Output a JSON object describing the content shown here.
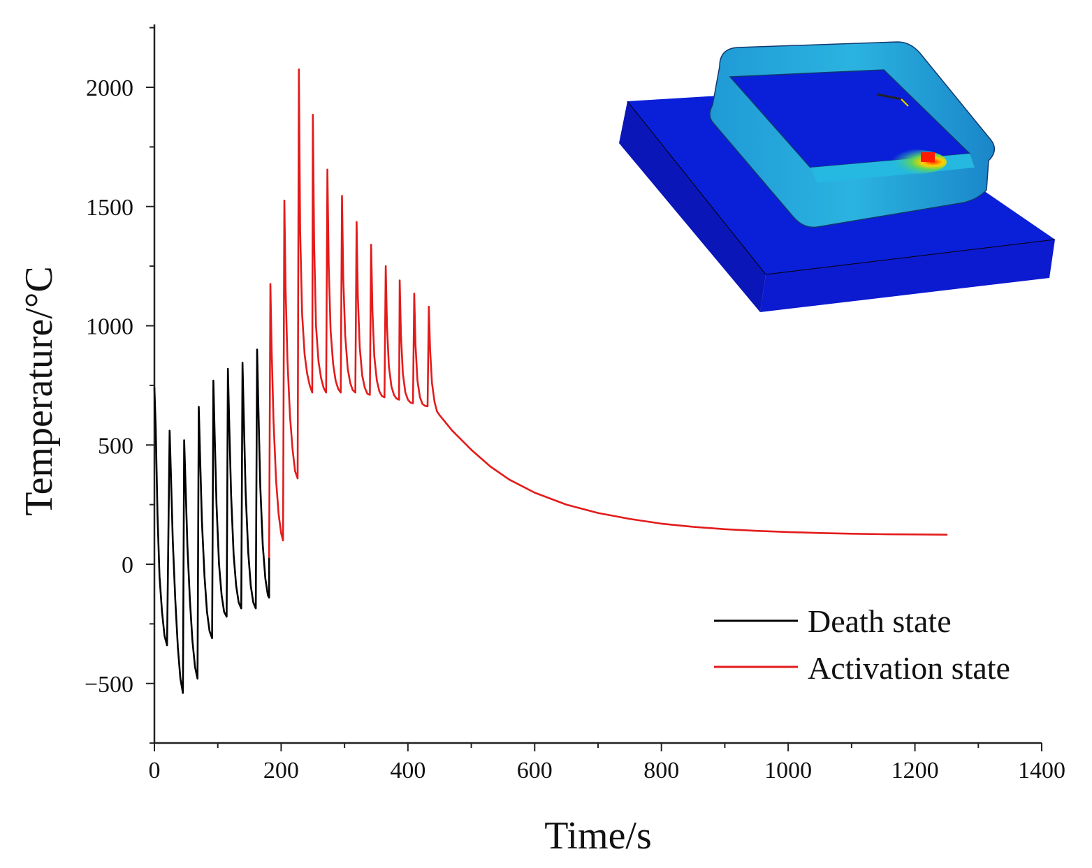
{
  "chart_data": {
    "type": "line",
    "title": "",
    "xlabel": "Time/s",
    "ylabel": "Temperature/°C",
    "xlim": [
      0,
      1400
    ],
    "ylim": [
      -750,
      2250
    ],
    "xticks": [
      0,
      200,
      400,
      600,
      800,
      1000,
      1200,
      1400
    ],
    "xtick_labels": [
      "0",
      "200",
      "400",
      "600",
      "800",
      "1000",
      "1200",
      "1400"
    ],
    "yticks": [
      -500,
      0,
      500,
      1000,
      1500,
      2000
    ],
    "ytick_labels": [
      "−500",
      "0",
      "500",
      "1000",
      "1500",
      "2000"
    ],
    "grid": false,
    "legend_position": "bottom-right",
    "inset": "3D finite element temperature contour of deposited rectangular frame on substrate",
    "series": [
      {
        "name": "Death state",
        "color": "#000000",
        "points": [
          [
            0,
            740
          ],
          [
            2,
            580
          ],
          [
            5,
            200
          ],
          [
            8,
            -50
          ],
          [
            12,
            -200
          ],
          [
            16,
            -300
          ],
          [
            20,
            -340
          ],
          [
            24,
            560
          ],
          [
            26,
            380
          ],
          [
            29,
            100
          ],
          [
            33,
            -150
          ],
          [
            37,
            -350
          ],
          [
            41,
            -480
          ],
          [
            45,
            -540
          ],
          [
            47,
            520
          ],
          [
            49,
            350
          ],
          [
            52,
            80
          ],
          [
            56,
            -150
          ],
          [
            60,
            -320
          ],
          [
            64,
            -430
          ],
          [
            68,
            -480
          ],
          [
            70,
            660
          ],
          [
            72,
            460
          ],
          [
            75,
            180
          ],
          [
            79,
            -50
          ],
          [
            83,
            -200
          ],
          [
            87,
            -280
          ],
          [
            91,
            -310
          ],
          [
            93,
            770
          ],
          [
            95,
            550
          ],
          [
            98,
            250
          ],
          [
            102,
            0
          ],
          [
            106,
            -130
          ],
          [
            110,
            -200
          ],
          [
            114,
            -220
          ],
          [
            116,
            820
          ],
          [
            118,
            600
          ],
          [
            121,
            290
          ],
          [
            125,
            40
          ],
          [
            129,
            -90
          ],
          [
            133,
            -160
          ],
          [
            137,
            -185
          ],
          [
            139,
            845
          ],
          [
            141,
            620
          ],
          [
            144,
            300
          ],
          [
            148,
            50
          ],
          [
            152,
            -90
          ],
          [
            156,
            -160
          ],
          [
            160,
            -185
          ],
          [
            162,
            900
          ],
          [
            164,
            660
          ],
          [
            167,
            330
          ],
          [
            171,
            80
          ],
          [
            175,
            -60
          ],
          [
            179,
            -130
          ],
          [
            181,
            -140
          ],
          [
            181,
            30
          ]
        ]
      },
      {
        "name": "Activation state",
        "color": "#e31b1b",
        "points": [
          [
            181,
            30
          ],
          [
            183,
            1175
          ],
          [
            185,
            900
          ],
          [
            188,
            600
          ],
          [
            192,
            350
          ],
          [
            196,
            210
          ],
          [
            200,
            130
          ],
          [
            203,
            100
          ],
          [
            205,
            1525
          ],
          [
            207,
            1150
          ],
          [
            210,
            850
          ],
          [
            214,
            620
          ],
          [
            218,
            480
          ],
          [
            222,
            390
          ],
          [
            226,
            360
          ],
          [
            228,
            2075
          ],
          [
            230,
            1400
          ],
          [
            233,
            1050
          ],
          [
            237,
            880
          ],
          [
            241,
            800
          ],
          [
            245,
            750
          ],
          [
            249,
            720
          ],
          [
            250,
            1885
          ],
          [
            252,
            1350
          ],
          [
            255,
            1000
          ],
          [
            259,
            850
          ],
          [
            263,
            780
          ],
          [
            267,
            740
          ],
          [
            271,
            720
          ],
          [
            273,
            1655
          ],
          [
            275,
            1250
          ],
          [
            278,
            980
          ],
          [
            282,
            840
          ],
          [
            286,
            770
          ],
          [
            290,
            735
          ],
          [
            294,
            720
          ],
          [
            296,
            1545
          ],
          [
            298,
            1200
          ],
          [
            301,
            960
          ],
          [
            305,
            820
          ],
          [
            309,
            760
          ],
          [
            313,
            730
          ],
          [
            317,
            720
          ],
          [
            319,
            1435
          ],
          [
            321,
            1120
          ],
          [
            324,
            910
          ],
          [
            328,
            790
          ],
          [
            332,
            740
          ],
          [
            336,
            715
          ],
          [
            340,
            710
          ],
          [
            342,
            1340
          ],
          [
            344,
            1060
          ],
          [
            347,
            870
          ],
          [
            351,
            770
          ],
          [
            355,
            725
          ],
          [
            359,
            705
          ],
          [
            363,
            700
          ],
          [
            365,
            1250
          ],
          [
            367,
            1000
          ],
          [
            370,
            830
          ],
          [
            374,
            745
          ],
          [
            378,
            710
          ],
          [
            382,
            695
          ],
          [
            386,
            690
          ],
          [
            387,
            1190
          ],
          [
            389,
            960
          ],
          [
            392,
            800
          ],
          [
            396,
            720
          ],
          [
            400,
            690
          ],
          [
            404,
            678
          ],
          [
            408,
            675
          ],
          [
            410,
            1135
          ],
          [
            412,
            920
          ],
          [
            415,
            770
          ],
          [
            419,
            700
          ],
          [
            423,
            672
          ],
          [
            427,
            664
          ],
          [
            431,
            662
          ],
          [
            433,
            1080
          ],
          [
            435,
            900
          ],
          [
            438,
            760
          ],
          [
            442,
            680
          ],
          [
            446,
            640
          ],
          [
            450,
            625
          ],
          [
            470,
            560
          ],
          [
            500,
            480
          ],
          [
            530,
            410
          ],
          [
            560,
            355
          ],
          [
            600,
            300
          ],
          [
            650,
            250
          ],
          [
            700,
            215
          ],
          [
            750,
            190
          ],
          [
            800,
            170
          ],
          [
            850,
            157
          ],
          [
            900,
            147
          ],
          [
            950,
            140
          ],
          [
            1000,
            135
          ],
          [
            1050,
            131
          ],
          [
            1100,
            128
          ],
          [
            1150,
            126
          ],
          [
            1200,
            125
          ],
          [
            1250,
            124
          ]
        ]
      }
    ]
  }
}
